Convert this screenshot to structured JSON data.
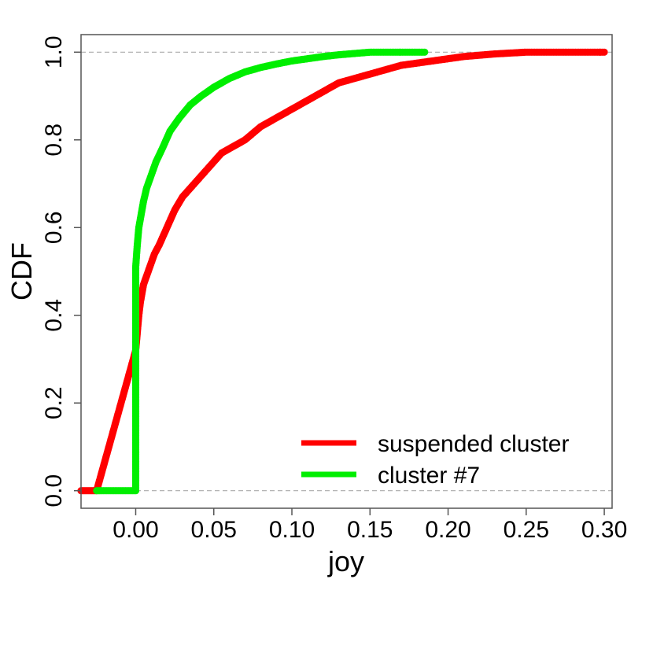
{
  "chart_data": {
    "type": "scatter",
    "title": "",
    "xlabel": "joy",
    "ylabel": "CDF",
    "xlim": [
      -0.035,
      0.305
    ],
    "ylim": [
      -0.04,
      1.04
    ],
    "xticks": [
      0.0,
      0.05,
      0.1,
      0.15,
      0.2,
      0.25,
      0.3
    ],
    "xtick_labels": [
      "0.00",
      "0.05",
      "0.10",
      "0.15",
      "0.20",
      "0.25",
      "0.30"
    ],
    "yticks": [
      0.0,
      0.2,
      0.4,
      0.6,
      0.8,
      1.0
    ],
    "ytick_labels": [
      "0.0",
      "0.2",
      "0.4",
      "0.6",
      "0.8",
      "1.0"
    ],
    "reference_lines_y": [
      0.0,
      1.0
    ],
    "legend_position": "bottom-right",
    "series": [
      {
        "name": "suspended cluster",
        "color": "#ff0000",
        "points": [
          [
            -0.035,
            0.0
          ],
          [
            -0.025,
            0.0
          ],
          [
            0.0,
            0.32
          ],
          [
            0.001,
            0.36
          ],
          [
            0.002,
            0.4
          ],
          [
            0.003,
            0.43
          ],
          [
            0.004,
            0.45
          ],
          [
            0.005,
            0.47
          ],
          [
            0.007,
            0.49
          ],
          [
            0.009,
            0.51
          ],
          [
            0.012,
            0.54
          ],
          [
            0.015,
            0.56
          ],
          [
            0.02,
            0.6
          ],
          [
            0.025,
            0.64
          ],
          [
            0.03,
            0.67
          ],
          [
            0.035,
            0.69
          ],
          [
            0.04,
            0.71
          ],
          [
            0.045,
            0.73
          ],
          [
            0.05,
            0.75
          ],
          [
            0.055,
            0.77
          ],
          [
            0.06,
            0.78
          ],
          [
            0.07,
            0.8
          ],
          [
            0.08,
            0.83
          ],
          [
            0.09,
            0.85
          ],
          [
            0.1,
            0.87
          ],
          [
            0.11,
            0.89
          ],
          [
            0.12,
            0.91
          ],
          [
            0.13,
            0.93
          ],
          [
            0.14,
            0.94
          ],
          [
            0.15,
            0.95
          ],
          [
            0.16,
            0.96
          ],
          [
            0.17,
            0.97
          ],
          [
            0.18,
            0.975
          ],
          [
            0.19,
            0.98
          ],
          [
            0.2,
            0.985
          ],
          [
            0.21,
            0.99
          ],
          [
            0.22,
            0.993
          ],
          [
            0.23,
            0.996
          ],
          [
            0.24,
            0.998
          ],
          [
            0.25,
            1.0
          ],
          [
            0.3,
            1.0
          ]
        ]
      },
      {
        "name": "cluster #7",
        "color": "#00ee00",
        "points": [
          [
            -0.025,
            0.0
          ],
          [
            0.0,
            0.0
          ],
          [
            0.0,
            0.51
          ],
          [
            0.001,
            0.56
          ],
          [
            0.002,
            0.6
          ],
          [
            0.003,
            0.62
          ],
          [
            0.004,
            0.64
          ],
          [
            0.005,
            0.66
          ],
          [
            0.007,
            0.69
          ],
          [
            0.01,
            0.72
          ],
          [
            0.013,
            0.75
          ],
          [
            0.017,
            0.78
          ],
          [
            0.022,
            0.82
          ],
          [
            0.028,
            0.85
          ],
          [
            0.035,
            0.88
          ],
          [
            0.042,
            0.9
          ],
          [
            0.05,
            0.92
          ],
          [
            0.06,
            0.94
          ],
          [
            0.07,
            0.955
          ],
          [
            0.08,
            0.965
          ],
          [
            0.09,
            0.973
          ],
          [
            0.1,
            0.98
          ],
          [
            0.11,
            0.985
          ],
          [
            0.12,
            0.99
          ],
          [
            0.13,
            0.994
          ],
          [
            0.14,
            0.997
          ],
          [
            0.15,
            1.0
          ],
          [
            0.185,
            1.0
          ]
        ]
      }
    ]
  }
}
